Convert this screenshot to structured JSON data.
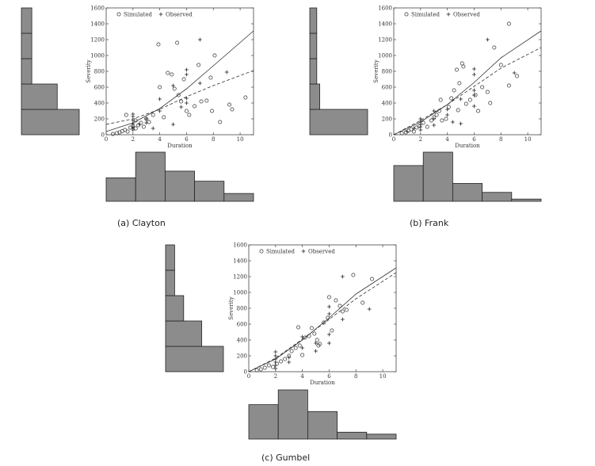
{
  "legend": {
    "simulated": "Simulated",
    "observed": "Observed"
  },
  "chart_data": [
    {
      "type": "scatter",
      "caption": "(a) Clayton",
      "xlabel": "Duration",
      "ylabel": "Severity",
      "xlim": [
        0,
        11
      ],
      "ylim": [
        0,
        1600
      ],
      "xticks": [
        0,
        2,
        4,
        6,
        8,
        10
      ],
      "yticks": [
        0,
        200,
        400,
        600,
        800,
        1000,
        1200,
        1400,
        1600
      ],
      "legend_position": "top-left",
      "series": [
        {
          "name": "Simulated",
          "marker": "circle",
          "points": [
            [
              0.5,
              10
            ],
            [
              0.8,
              20
            ],
            [
              1.0,
              30
            ],
            [
              1.2,
              45
            ],
            [
              1.4,
              60
            ],
            [
              1.6,
              40
            ],
            [
              1.8,
              90
            ],
            [
              2.0,
              110
            ],
            [
              2.2,
              80
            ],
            [
              2.4,
              120
            ],
            [
              2.6,
              150
            ],
            [
              2.8,
              100
            ],
            [
              3.0,
              200
            ],
            [
              3.2,
              160
            ],
            [
              3.5,
              250
            ],
            [
              3.9,
              1140
            ],
            [
              4.0,
              600
            ],
            [
              4.3,
              220
            ],
            [
              4.6,
              780
            ],
            [
              4.9,
              760
            ],
            [
              5.1,
              580
            ],
            [
              5.4,
              500
            ],
            [
              5.6,
              420
            ],
            [
              5.8,
              700
            ],
            [
              6.0,
              300
            ],
            [
              6.2,
              250
            ],
            [
              6.6,
              360
            ],
            [
              6.9,
              880
            ],
            [
              7.1,
              420
            ],
            [
              7.5,
              430
            ],
            [
              7.9,
              300
            ],
            [
              8.1,
              1000
            ],
            [
              8.5,
              160
            ],
            [
              9.2,
              380
            ],
            [
              9.4,
              320
            ],
            [
              10.4,
              470
            ],
            [
              1.5,
              250
            ],
            [
              2.2,
              180
            ],
            [
              5.3,
              1160
            ],
            [
              7.8,
              720
            ]
          ]
        },
        {
          "name": "Observed",
          "marker": "plus",
          "points": [
            [
              2,
              60
            ],
            [
              2,
              80
            ],
            [
              2,
              100
            ],
            [
              2,
              140
            ],
            [
              2,
              180
            ],
            [
              2,
              230
            ],
            [
              2,
              260
            ],
            [
              2.5,
              130
            ],
            [
              3,
              150
            ],
            [
              3,
              200
            ],
            [
              4,
              450
            ],
            [
              4,
              300
            ],
            [
              5,
              620
            ],
            [
              5,
              130
            ],
            [
              6,
              820
            ],
            [
              6,
              760
            ],
            [
              6,
              460
            ],
            [
              6,
              400
            ],
            [
              7,
              1200
            ],
            [
              7,
              650
            ],
            [
              9,
              790
            ],
            [
              3.5,
              80
            ],
            [
              5.6,
              350
            ]
          ]
        },
        {
          "name": "",
          "line": "solid",
          "points": [
            [
              0,
              40
            ],
            [
              2,
              150
            ],
            [
              4,
              330
            ],
            [
              6,
              580
            ],
            [
              8,
              870
            ],
            [
              11,
              1310
            ]
          ]
        },
        {
          "name": "",
          "line": "dashed",
          "points": [
            [
              0,
              130
            ],
            [
              2,
              200
            ],
            [
              4,
              320
            ],
            [
              6,
              480
            ],
            [
              8,
              620
            ],
            [
              11,
              810
            ]
          ]
        }
      ],
      "hist_x": {
        "bins": [
          0,
          2.2,
          4.4,
          6.6,
          8.8,
          11
        ],
        "values": [
          21,
          44,
          27,
          18,
          7
        ]
      },
      "hist_y": {
        "bins": [
          0,
          320,
          640,
          960,
          1280,
          1600
        ],
        "values": [
          50,
          31,
          9,
          9,
          9
        ]
      }
    },
    {
      "type": "scatter",
      "caption": "(b) Frank",
      "xlabel": "Duration",
      "ylabel": "Severity",
      "xlim": [
        0,
        11
      ],
      "ylim": [
        0,
        1600
      ],
      "xticks": [
        0,
        2,
        4,
        6,
        8,
        10
      ],
      "yticks": [
        0,
        200,
        400,
        600,
        800,
        1000,
        1200,
        1400,
        1600
      ],
      "legend_position": "top-left",
      "series": [
        {
          "name": "Simulated",
          "marker": "circle",
          "points": [
            [
              0.6,
              20
            ],
            [
              0.9,
              30
            ],
            [
              1.1,
              50
            ],
            [
              1.3,
              70
            ],
            [
              1.5,
              40
            ],
            [
              1.7,
              90
            ],
            [
              1.9,
              110
            ],
            [
              2.2,
              150
            ],
            [
              2.5,
              100
            ],
            [
              2.8,
              180
            ],
            [
              3.0,
              220
            ],
            [
              3.2,
              250
            ],
            [
              3.4,
              300
            ],
            [
              3.6,
              180
            ],
            [
              3.9,
              200
            ],
            [
              4.1,
              350
            ],
            [
              4.3,
              460
            ],
            [
              4.5,
              560
            ],
            [
              4.7,
              820
            ],
            [
              4.9,
              650
            ],
            [
              5.1,
              900
            ],
            [
              5.2,
              860
            ],
            [
              5.4,
              390
            ],
            [
              5.7,
              440
            ],
            [
              6.1,
              500
            ],
            [
              6.3,
              300
            ],
            [
              6.6,
              600
            ],
            [
              7.0,
              540
            ],
            [
              7.2,
              400
            ],
            [
              7.5,
              1100
            ],
            [
              8.0,
              880
            ],
            [
              8.6,
              1400
            ],
            [
              9.2,
              740
            ],
            [
              3.5,
              440
            ],
            [
              4.8,
              310
            ],
            [
              8.6,
              620
            ]
          ]
        },
        {
          "name": "Observed",
          "marker": "plus",
          "points": [
            [
              1,
              40
            ],
            [
              1.5,
              80
            ],
            [
              2,
              60
            ],
            [
              2,
              100
            ],
            [
              2,
              130
            ],
            [
              2,
              170
            ],
            [
              2,
              200
            ],
            [
              3,
              120
            ],
            [
              3,
              200
            ],
            [
              3,
              300
            ],
            [
              4,
              250
            ],
            [
              4,
              320
            ],
            [
              5,
              140
            ],
            [
              5,
              450
            ],
            [
              6,
              360
            ],
            [
              6,
              500
            ],
            [
              6,
              560
            ],
            [
              6,
              760
            ],
            [
              6,
              830
            ],
            [
              7,
              1200
            ],
            [
              9,
              780
            ],
            [
              4.4,
              160
            ]
          ]
        },
        {
          "name": "",
          "line": "solid",
          "points": [
            [
              0,
              0
            ],
            [
              2,
              160
            ],
            [
              4,
              380
            ],
            [
              6,
              660
            ],
            [
              8,
              970
            ],
            [
              11,
              1310
            ]
          ]
        },
        {
          "name": "",
          "line": "dashed",
          "points": [
            [
              0,
              0
            ],
            [
              2,
              180
            ],
            [
              4,
              380
            ],
            [
              6,
              610
            ],
            [
              8,
              840
            ],
            [
              11,
              1100
            ]
          ]
        }
      ],
      "hist_x": {
        "bins": [
          0,
          2.2,
          4.4,
          6.6,
          8.8,
          11
        ],
        "values": [
          32,
          44,
          16,
          8,
          2
        ]
      },
      "hist_y": {
        "bins": [
          0,
          320,
          640,
          960,
          1280,
          1600
        ],
        "values": [
          58,
          10,
          7,
          7,
          7
        ]
      }
    },
    {
      "type": "scatter",
      "caption": "(c) Gumbel",
      "xlabel": "Duration",
      "ylabel": "Severity",
      "xlim": [
        0,
        11
      ],
      "ylim": [
        0,
        1600
      ],
      "xticks": [
        0,
        2,
        4,
        6,
        8,
        10
      ],
      "yticks": [
        0,
        200,
        400,
        600,
        800,
        1000,
        1200,
        1400,
        1600
      ],
      "legend_position": "top-left",
      "series": [
        {
          "name": "Simulated",
          "marker": "circle",
          "points": [
            [
              0.6,
              20
            ],
            [
              0.9,
              30
            ],
            [
              1.2,
              50
            ],
            [
              1.5,
              80
            ],
            [
              1.8,
              60
            ],
            [
              2.1,
              100
            ],
            [
              2.4,
              130
            ],
            [
              2.7,
              160
            ],
            [
              3.0,
              200
            ],
            [
              3.2,
              260
            ],
            [
              3.5,
              300
            ],
            [
              3.8,
              330
            ],
            [
              4.0,
              210
            ],
            [
              4.2,
              430
            ],
            [
              4.5,
              450
            ],
            [
              4.7,
              550
            ],
            [
              4.9,
              480
            ],
            [
              5.1,
              400
            ],
            [
              5.3,
              350
            ],
            [
              5.6,
              620
            ],
            [
              5.9,
              680
            ],
            [
              6.0,
              940
            ],
            [
              6.2,
              520
            ],
            [
              6.5,
              900
            ],
            [
              6.8,
              830
            ],
            [
              7.0,
              760
            ],
            [
              7.3,
              780
            ],
            [
              7.8,
              1220
            ],
            [
              8.5,
              870
            ],
            [
              9.2,
              1170
            ],
            [
              3.7,
              560
            ],
            [
              5.2,
              330
            ]
          ]
        },
        {
          "name": "Observed",
          "marker": "plus",
          "points": [
            [
              2,
              40
            ],
            [
              2,
              80
            ],
            [
              2,
              120
            ],
            [
              2,
              160
            ],
            [
              2,
              200
            ],
            [
              2,
              250
            ],
            [
              3,
              120
            ],
            [
              3,
              180
            ],
            [
              4,
              300
            ],
            [
              4,
              440
            ],
            [
              5,
              360
            ],
            [
              5,
              260
            ],
            [
              6,
              360
            ],
            [
              6,
              470
            ],
            [
              6,
              730
            ],
            [
              6,
              820
            ],
            [
              7,
              660
            ],
            [
              7,
              1200
            ],
            [
              9,
              790
            ]
          ]
        },
        {
          "name": "",
          "line": "solid",
          "points": [
            [
              0,
              0
            ],
            [
              2,
              160
            ],
            [
              4,
              400
            ],
            [
              6,
              680
            ],
            [
              8,
              980
            ],
            [
              11,
              1310
            ]
          ]
        },
        {
          "name": "",
          "line": "dashed",
          "points": [
            [
              0,
              0
            ],
            [
              2,
              170
            ],
            [
              4,
              410
            ],
            [
              6,
              660
            ],
            [
              8,
              920
            ],
            [
              11,
              1250
            ]
          ]
        }
      ],
      "hist_x": {
        "bins": [
          0,
          2.2,
          4.4,
          6.6,
          8.8,
          11
        ],
        "values": [
          35,
          50,
          28,
          7,
          5
        ]
      },
      "hist_y": {
        "bins": [
          0,
          320,
          640,
          960,
          1280,
          1600
        ],
        "values": [
          32,
          20,
          10,
          5,
          5
        ]
      }
    }
  ]
}
